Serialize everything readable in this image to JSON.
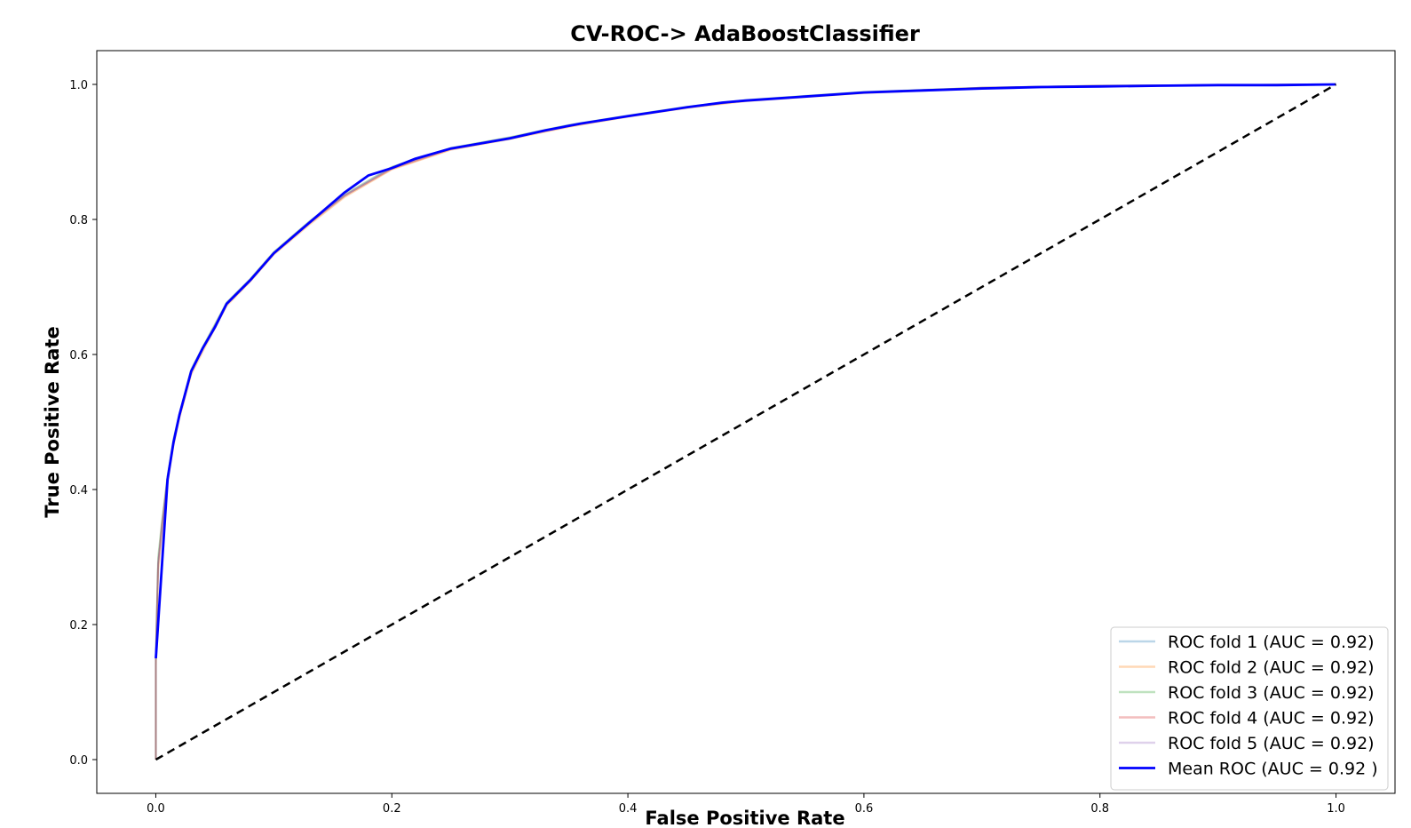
{
  "chart_data": {
    "type": "line",
    "title": "CV-ROC-> AdaBoostClassifier",
    "xlabel": "False Positive Rate",
    "ylabel": "True Positive Rate",
    "xlim": [
      -0.05,
      1.05
    ],
    "ylim": [
      -0.05,
      1.05
    ],
    "xticks": [
      "0.0",
      "0.2",
      "0.4",
      "0.6",
      "0.8",
      "1.0"
    ],
    "yticks": [
      "0.0",
      "0.2",
      "0.4",
      "0.6",
      "0.8",
      "1.0"
    ],
    "legend_position": "lower-right",
    "series": [
      {
        "name": "ROC fold 1 (AUC = 0.92)",
        "color": "#1f77b4",
        "x": [
          0.0,
          0.0,
          0.002,
          0.005,
          0.01,
          0.015,
          0.02,
          0.03,
          0.04,
          0.06,
          0.08,
          0.1,
          0.13,
          0.16,
          0.2,
          0.25,
          0.3,
          0.35,
          0.4,
          0.45,
          0.5,
          0.55,
          0.6,
          0.7,
          0.8,
          0.9,
          1.0
        ],
        "y": [
          0.0,
          0.15,
          0.29,
          0.34,
          0.42,
          0.47,
          0.51,
          0.575,
          0.61,
          0.675,
          0.71,
          0.75,
          0.795,
          0.835,
          0.876,
          0.905,
          0.921,
          0.939,
          0.953,
          0.966,
          0.976,
          0.982,
          0.988,
          0.995,
          0.998,
          0.999,
          1.0
        ]
      },
      {
        "name": "ROC fold 2 (AUC = 0.92)",
        "color": "#ff7f0e",
        "x": [
          0.0,
          0.0,
          0.002,
          0.005,
          0.01,
          0.015,
          0.02,
          0.03,
          0.04,
          0.06,
          0.08,
          0.1,
          0.13,
          0.16,
          0.2,
          0.25,
          0.3,
          0.35,
          0.4,
          0.45,
          0.5,
          0.55,
          0.6,
          0.7,
          0.8,
          0.9,
          1.0
        ],
        "y": [
          0.0,
          0.14,
          0.28,
          0.33,
          0.41,
          0.465,
          0.505,
          0.57,
          0.605,
          0.672,
          0.708,
          0.748,
          0.792,
          0.833,
          0.874,
          0.903,
          0.919,
          0.937,
          0.952,
          0.965,
          0.975,
          0.981,
          0.987,
          0.994,
          0.998,
          0.999,
          1.0
        ]
      },
      {
        "name": "ROC fold 3 (AUC = 0.92)",
        "color": "#2ca02c",
        "x": [
          0.0,
          0.0,
          0.002,
          0.005,
          0.01,
          0.015,
          0.02,
          0.03,
          0.04,
          0.06,
          0.08,
          0.1,
          0.13,
          0.16,
          0.2,
          0.25,
          0.3,
          0.35,
          0.4,
          0.45,
          0.5,
          0.55,
          0.6,
          0.7,
          0.8,
          0.9,
          1.0
        ],
        "y": [
          0.0,
          0.16,
          0.3,
          0.35,
          0.42,
          0.475,
          0.512,
          0.578,
          0.612,
          0.677,
          0.712,
          0.752,
          0.797,
          0.837,
          0.878,
          0.906,
          0.922,
          0.94,
          0.954,
          0.967,
          0.977,
          0.983,
          0.989,
          0.995,
          0.998,
          0.999,
          1.0
        ]
      },
      {
        "name": "ROC fold 4 (AUC = 0.92)",
        "color": "#d62728",
        "x": [
          0.0,
          0.0,
          0.002,
          0.005,
          0.01,
          0.015,
          0.02,
          0.03,
          0.04,
          0.06,
          0.08,
          0.1,
          0.13,
          0.16,
          0.2,
          0.25,
          0.3,
          0.35,
          0.4,
          0.45,
          0.5,
          0.55,
          0.6,
          0.7,
          0.8,
          0.9,
          1.0
        ],
        "y": [
          0.0,
          0.15,
          0.29,
          0.345,
          0.415,
          0.47,
          0.508,
          0.574,
          0.609,
          0.674,
          0.709,
          0.749,
          0.794,
          0.835,
          0.875,
          0.904,
          0.92,
          0.938,
          0.953,
          0.966,
          0.976,
          0.982,
          0.988,
          0.995,
          0.998,
          0.999,
          1.0
        ]
      },
      {
        "name": "ROC fold 5 (AUC = 0.92)",
        "color": "#9467bd",
        "x": [
          0.0,
          0.0,
          0.002,
          0.005,
          0.01,
          0.015,
          0.02,
          0.03,
          0.04,
          0.06,
          0.08,
          0.1,
          0.13,
          0.16,
          0.2,
          0.25,
          0.3,
          0.35,
          0.4,
          0.45,
          0.5,
          0.55,
          0.6,
          0.7,
          0.8,
          0.9,
          1.0
        ],
        "y": [
          0.0,
          0.15,
          0.29,
          0.34,
          0.42,
          0.47,
          0.51,
          0.576,
          0.61,
          0.676,
          0.711,
          0.751,
          0.796,
          0.836,
          0.877,
          0.905,
          0.921,
          0.939,
          0.953,
          0.966,
          0.976,
          0.982,
          0.988,
          0.995,
          0.998,
          0.999,
          1.0
        ]
      },
      {
        "name": "Mean ROC (AUC = 0.92 )",
        "color": "#0000ff",
        "x": [
          0.0,
          0.01,
          0.015,
          0.02,
          0.03,
          0.04,
          0.05,
          0.06,
          0.08,
          0.1,
          0.12,
          0.14,
          0.16,
          0.18,
          0.2,
          0.22,
          0.25,
          0.3,
          0.33,
          0.36,
          0.4,
          0.45,
          0.48,
          0.5,
          0.55,
          0.6,
          0.65,
          0.7,
          0.75,
          0.8,
          0.85,
          0.9,
          0.95,
          1.0
        ],
        "y": [
          0.15,
          0.415,
          0.47,
          0.51,
          0.575,
          0.61,
          0.64,
          0.675,
          0.71,
          0.75,
          0.78,
          0.81,
          0.84,
          0.865,
          0.876,
          0.89,
          0.905,
          0.92,
          0.932,
          0.942,
          0.953,
          0.966,
          0.973,
          0.976,
          0.982,
          0.988,
          0.991,
          0.994,
          0.996,
          0.997,
          0.998,
          0.999,
          0.999,
          1.0
        ]
      },
      {
        "name": "",
        "color": "#000000",
        "dashed": true,
        "x": [
          0.0,
          1.0
        ],
        "y": [
          0.0,
          1.0
        ]
      }
    ]
  }
}
